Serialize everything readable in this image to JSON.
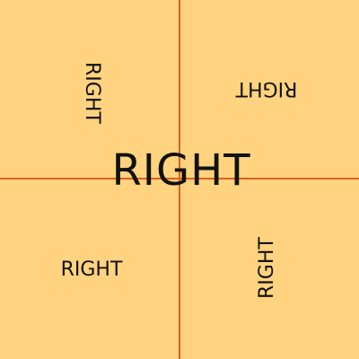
{
  "background_color": "#ffd37f",
  "axis_color": "#d8621e",
  "words": {
    "center": "RIGHT",
    "top_left": "RIGHT",
    "top_right": "RIGHT",
    "bottom_left": "RIGHT",
    "bottom_right": "RIGHT"
  }
}
